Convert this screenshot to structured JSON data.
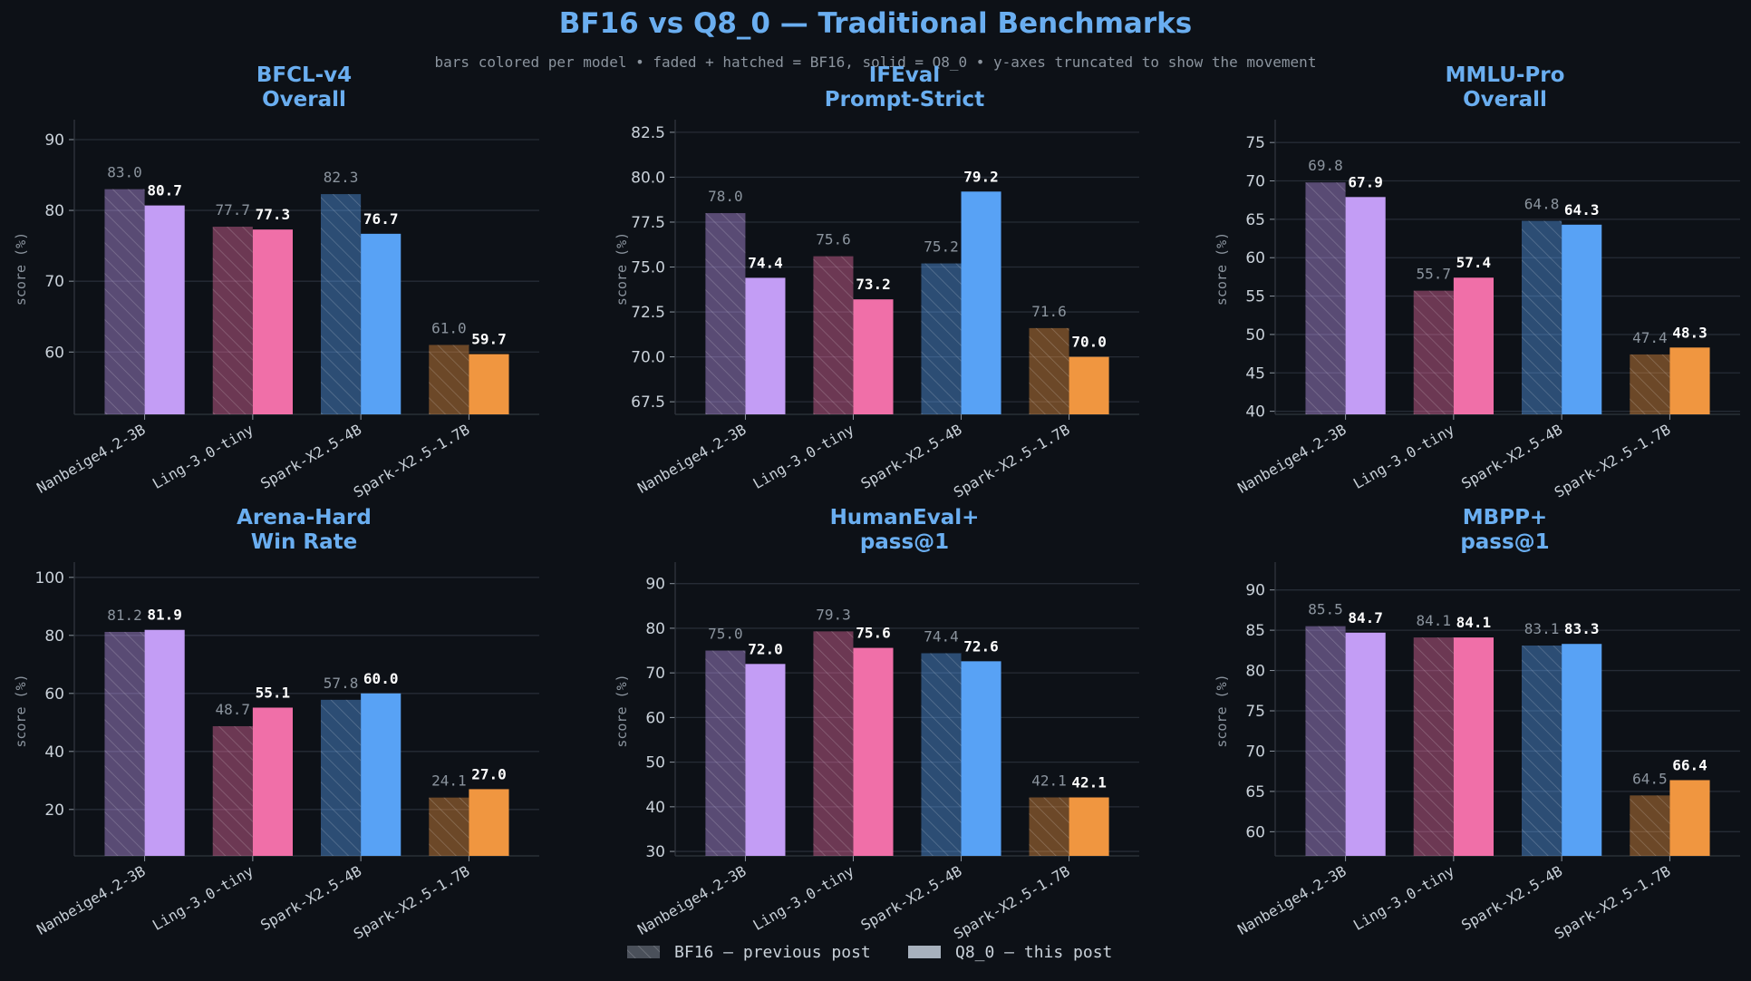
{
  "title": "BF16 vs Q8_0 — Traditional Benchmarks",
  "subtitle": "bars colored per model • faded + hatched = BF16, solid = Q8_0 • y-axes truncated to show the movement",
  "legend": {
    "bf16_label": "BF16 — previous post",
    "q8_label": "Q8_0 — this post",
    "placement": "bottom-center"
  },
  "colors": {
    "background": "#0d1117",
    "title": "#6aaef0",
    "axis_text": "#c9d1d9",
    "muted_text": "#8b949e",
    "grid": "#262c36",
    "models": {
      "Nanbeige4.2-3B": "#c39df5",
      "Ling-3.0-tiny": "#f06fa8",
      "Spark-X2.5-4B": "#58a2f5",
      "Spark-X2.5-1.7B": "#f09640"
    }
  },
  "chart_data": [
    {
      "type": "bar",
      "title": "BFCL-v4\nOverall",
      "ylabel": "score (%)",
      "categories": [
        "Nanbeige4.2-3B",
        "Ling-3.0-tiny",
        "Spark-X2.5-4B",
        "Spark-X2.5-1.7B"
      ],
      "series": [
        {
          "name": "BF16 — previous post",
          "values": [
            83.0,
            77.7,
            82.3,
            61.0
          ]
        },
        {
          "name": "Q8_0 — this post",
          "values": [
            80.7,
            77.3,
            76.7,
            59.7
          ]
        }
      ],
      "ylim": [
        51.2,
        92.3
      ],
      "yticks": [
        60,
        70,
        80,
        90
      ],
      "grid": true
    },
    {
      "type": "bar",
      "title": "IFEval\nPrompt-Strict",
      "ylabel": "score (%)",
      "categories": [
        "Nanbeige4.2-3B",
        "Ling-3.0-tiny",
        "Spark-X2.5-4B",
        "Spark-X2.5-1.7B"
      ],
      "series": [
        {
          "name": "BF16 — previous post",
          "values": [
            78.0,
            75.6,
            75.2,
            71.6
          ]
        },
        {
          "name": "Q8_0 — this post",
          "values": [
            74.4,
            73.2,
            79.2,
            70.0
          ]
        }
      ],
      "ylim": [
        66.8,
        83.0
      ],
      "yticks": [
        67.5,
        70.0,
        72.5,
        75.0,
        77.5,
        80.0,
        82.5
      ],
      "grid": true
    },
    {
      "type": "bar",
      "title": "MMLU-Pro\nOverall",
      "ylabel": "score (%)",
      "categories": [
        "Nanbeige4.2-3B",
        "Ling-3.0-tiny",
        "Spark-X2.5-4B",
        "Spark-X2.5-1.7B"
      ],
      "series": [
        {
          "name": "BF16 — previous post",
          "values": [
            69.8,
            55.7,
            64.8,
            47.4
          ]
        },
        {
          "name": "Q8_0 — this post",
          "values": [
            67.9,
            57.4,
            64.3,
            48.3
          ]
        }
      ],
      "ylim": [
        39.6,
        77.5
      ],
      "yticks": [
        40,
        45,
        50,
        55,
        60,
        65,
        70,
        75
      ],
      "grid": true
    },
    {
      "type": "bar",
      "title": "Arena-Hard\nWin Rate",
      "ylabel": "score (%)",
      "categories": [
        "Nanbeige4.2-3B",
        "Ling-3.0-tiny",
        "Spark-X2.5-4B",
        "Spark-X2.5-1.7B"
      ],
      "series": [
        {
          "name": "BF16 — previous post",
          "values": [
            81.2,
            48.7,
            57.8,
            24.1
          ]
        },
        {
          "name": "Q8_0 — this post",
          "values": [
            81.9,
            55.1,
            60.0,
            27.0
          ]
        }
      ],
      "ylim": [
        4.0,
        104.0
      ],
      "yticks": [
        20,
        40,
        60,
        80,
        100
      ],
      "grid": true
    },
    {
      "type": "bar",
      "title": "HumanEval+\npass@1",
      "ylabel": "score (%)",
      "categories": [
        "Nanbeige4.2-3B",
        "Ling-3.0-tiny",
        "Spark-X2.5-4B",
        "Spark-X2.5-1.7B"
      ],
      "series": [
        {
          "name": "BF16 — previous post",
          "values": [
            75.0,
            79.3,
            74.4,
            42.1
          ]
        },
        {
          "name": "Q8_0 — this post",
          "values": [
            72.0,
            75.6,
            72.6,
            42.1
          ]
        }
      ],
      "ylim": [
        29.0,
        94.0
      ],
      "yticks": [
        30,
        40,
        50,
        60,
        70,
        80,
        90
      ],
      "grid": true
    },
    {
      "type": "bar",
      "title": "MBPP+\npass@1",
      "ylabel": "score (%)",
      "categories": [
        "Nanbeige4.2-3B",
        "Ling-3.0-tiny",
        "Spark-X2.5-4B",
        "Spark-X2.5-1.7B"
      ],
      "series": [
        {
          "name": "BF16 — previous post",
          "values": [
            85.5,
            84.1,
            83.1,
            64.5
          ]
        },
        {
          "name": "Q8_0 — this post",
          "values": [
            84.7,
            84.1,
            83.3,
            66.4
          ]
        }
      ],
      "ylim": [
        57.0,
        93.0
      ],
      "yticks": [
        60,
        65,
        70,
        75,
        80,
        85,
        90
      ],
      "grid": true
    }
  ]
}
